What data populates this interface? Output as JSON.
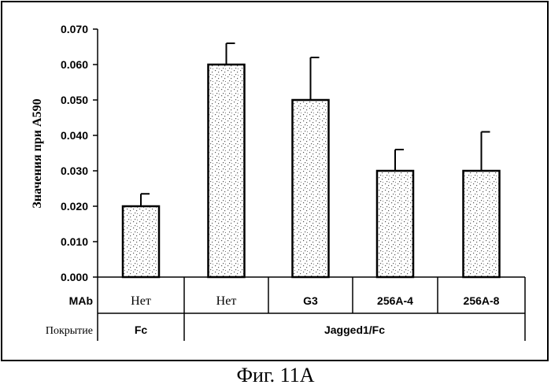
{
  "chart_data": {
    "type": "bar",
    "ylabel": "Значения при A590",
    "ylim": [
      0,
      0.07
    ],
    "yticks": [
      "0.000",
      "0.010",
      "0.020",
      "0.030",
      "0.040",
      "0.050",
      "0.060",
      "0.070"
    ],
    "categories": [
      "Нет",
      "Нет",
      "G3",
      "256A-4",
      "256A-8"
    ],
    "values": [
      0.02,
      0.06,
      0.05,
      0.03,
      0.03
    ],
    "errors": [
      0.0035,
      0.006,
      0.012,
      0.006,
      0.011
    ],
    "category_fonts": [
      "serif",
      "serif",
      "sans",
      "sans",
      "sans"
    ],
    "rows": [
      {
        "label": "MAb",
        "label_style": "bold",
        "cells": [
          "Нет",
          "Нет",
          "G3",
          "256A-4",
          "256A-8"
        ]
      },
      {
        "label": "Покрытие",
        "label_style": "serif",
        "groups": [
          {
            "text": "Fc",
            "span": 1
          },
          {
            "text": "Jagged1/Fc",
            "span": 4
          }
        ]
      }
    ],
    "grid": false
  },
  "caption": "Фиг. 11A"
}
